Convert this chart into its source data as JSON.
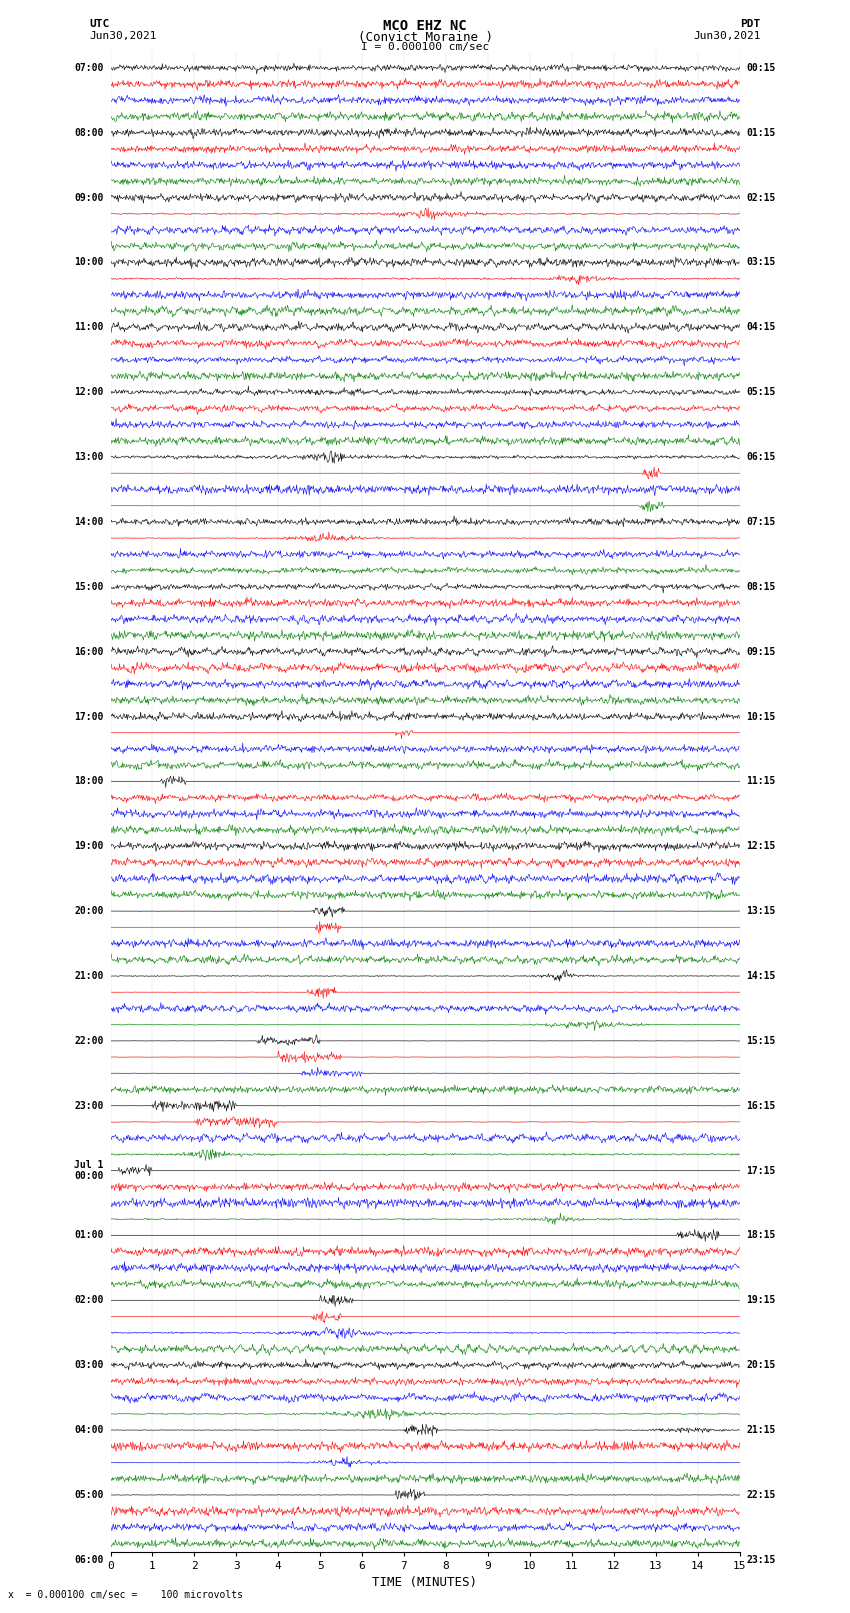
{
  "title_line1": "MCO EHZ NC",
  "title_line2": "(Convict Moraine )",
  "scale_text": "I = 0.000100 cm/sec",
  "left_label_line1": "UTC",
  "left_label_line2": "Jun30,2021",
  "right_label_line1": "PDT",
  "right_label_line2": "Jun30,2021",
  "bottom_label": "TIME (MINUTES)",
  "bottom_note": "x  = 0.000100 cm/sec =    100 microvolts",
  "xlabel_ticks": [
    0,
    1,
    2,
    3,
    4,
    5,
    6,
    7,
    8,
    9,
    10,
    11,
    12,
    13,
    14,
    15
  ],
  "utc_times": [
    "07:00",
    "",
    "",
    "",
    "08:00",
    "",
    "",
    "",
    "09:00",
    "",
    "",
    "",
    "10:00",
    "",
    "",
    "",
    "11:00",
    "",
    "",
    "",
    "12:00",
    "",
    "",
    "",
    "13:00",
    "",
    "",
    "",
    "14:00",
    "",
    "",
    "",
    "15:00",
    "",
    "",
    "",
    "16:00",
    "",
    "",
    "",
    "17:00",
    "",
    "",
    "",
    "18:00",
    "",
    "",
    "",
    "19:00",
    "",
    "",
    "",
    "20:00",
    "",
    "",
    "",
    "21:00",
    "",
    "",
    "",
    "22:00",
    "",
    "",
    "",
    "23:00",
    "",
    "",
    "",
    "Jul 1\n00:00",
    "",
    "",
    "",
    "01:00",
    "",
    "",
    "",
    "02:00",
    "",
    "",
    "",
    "03:00",
    "",
    "",
    "",
    "04:00",
    "",
    "",
    "",
    "05:00",
    "",
    "",
    "",
    "06:00",
    "",
    "",
    ""
  ],
  "pdt_times": [
    "00:15",
    "",
    "",
    "",
    "01:15",
    "",
    "",
    "",
    "02:15",
    "",
    "",
    "",
    "03:15",
    "",
    "",
    "",
    "04:15",
    "",
    "",
    "",
    "05:15",
    "",
    "",
    "",
    "06:15",
    "",
    "",
    "",
    "07:15",
    "",
    "",
    "",
    "08:15",
    "",
    "",
    "",
    "09:15",
    "",
    "",
    "",
    "10:15",
    "",
    "",
    "",
    "11:15",
    "",
    "",
    "",
    "12:15",
    "",
    "",
    "",
    "13:15",
    "",
    "",
    "",
    "14:15",
    "",
    "",
    "",
    "15:15",
    "",
    "",
    "",
    "16:15",
    "",
    "",
    "",
    "17:15",
    "",
    "",
    "",
    "18:15",
    "",
    "",
    "",
    "19:15",
    "",
    "",
    "",
    "20:15",
    "",
    "",
    "",
    "21:15",
    "",
    "",
    "",
    "22:15",
    "",
    "",
    "",
    "23:15",
    "",
    "",
    ""
  ],
  "n_rows": 92,
  "trace_color_cycle": [
    "black",
    "red",
    "blue",
    "green"
  ],
  "bg_color": "white",
  "fig_width": 8.5,
  "fig_height": 16.13,
  "dpi": 100
}
